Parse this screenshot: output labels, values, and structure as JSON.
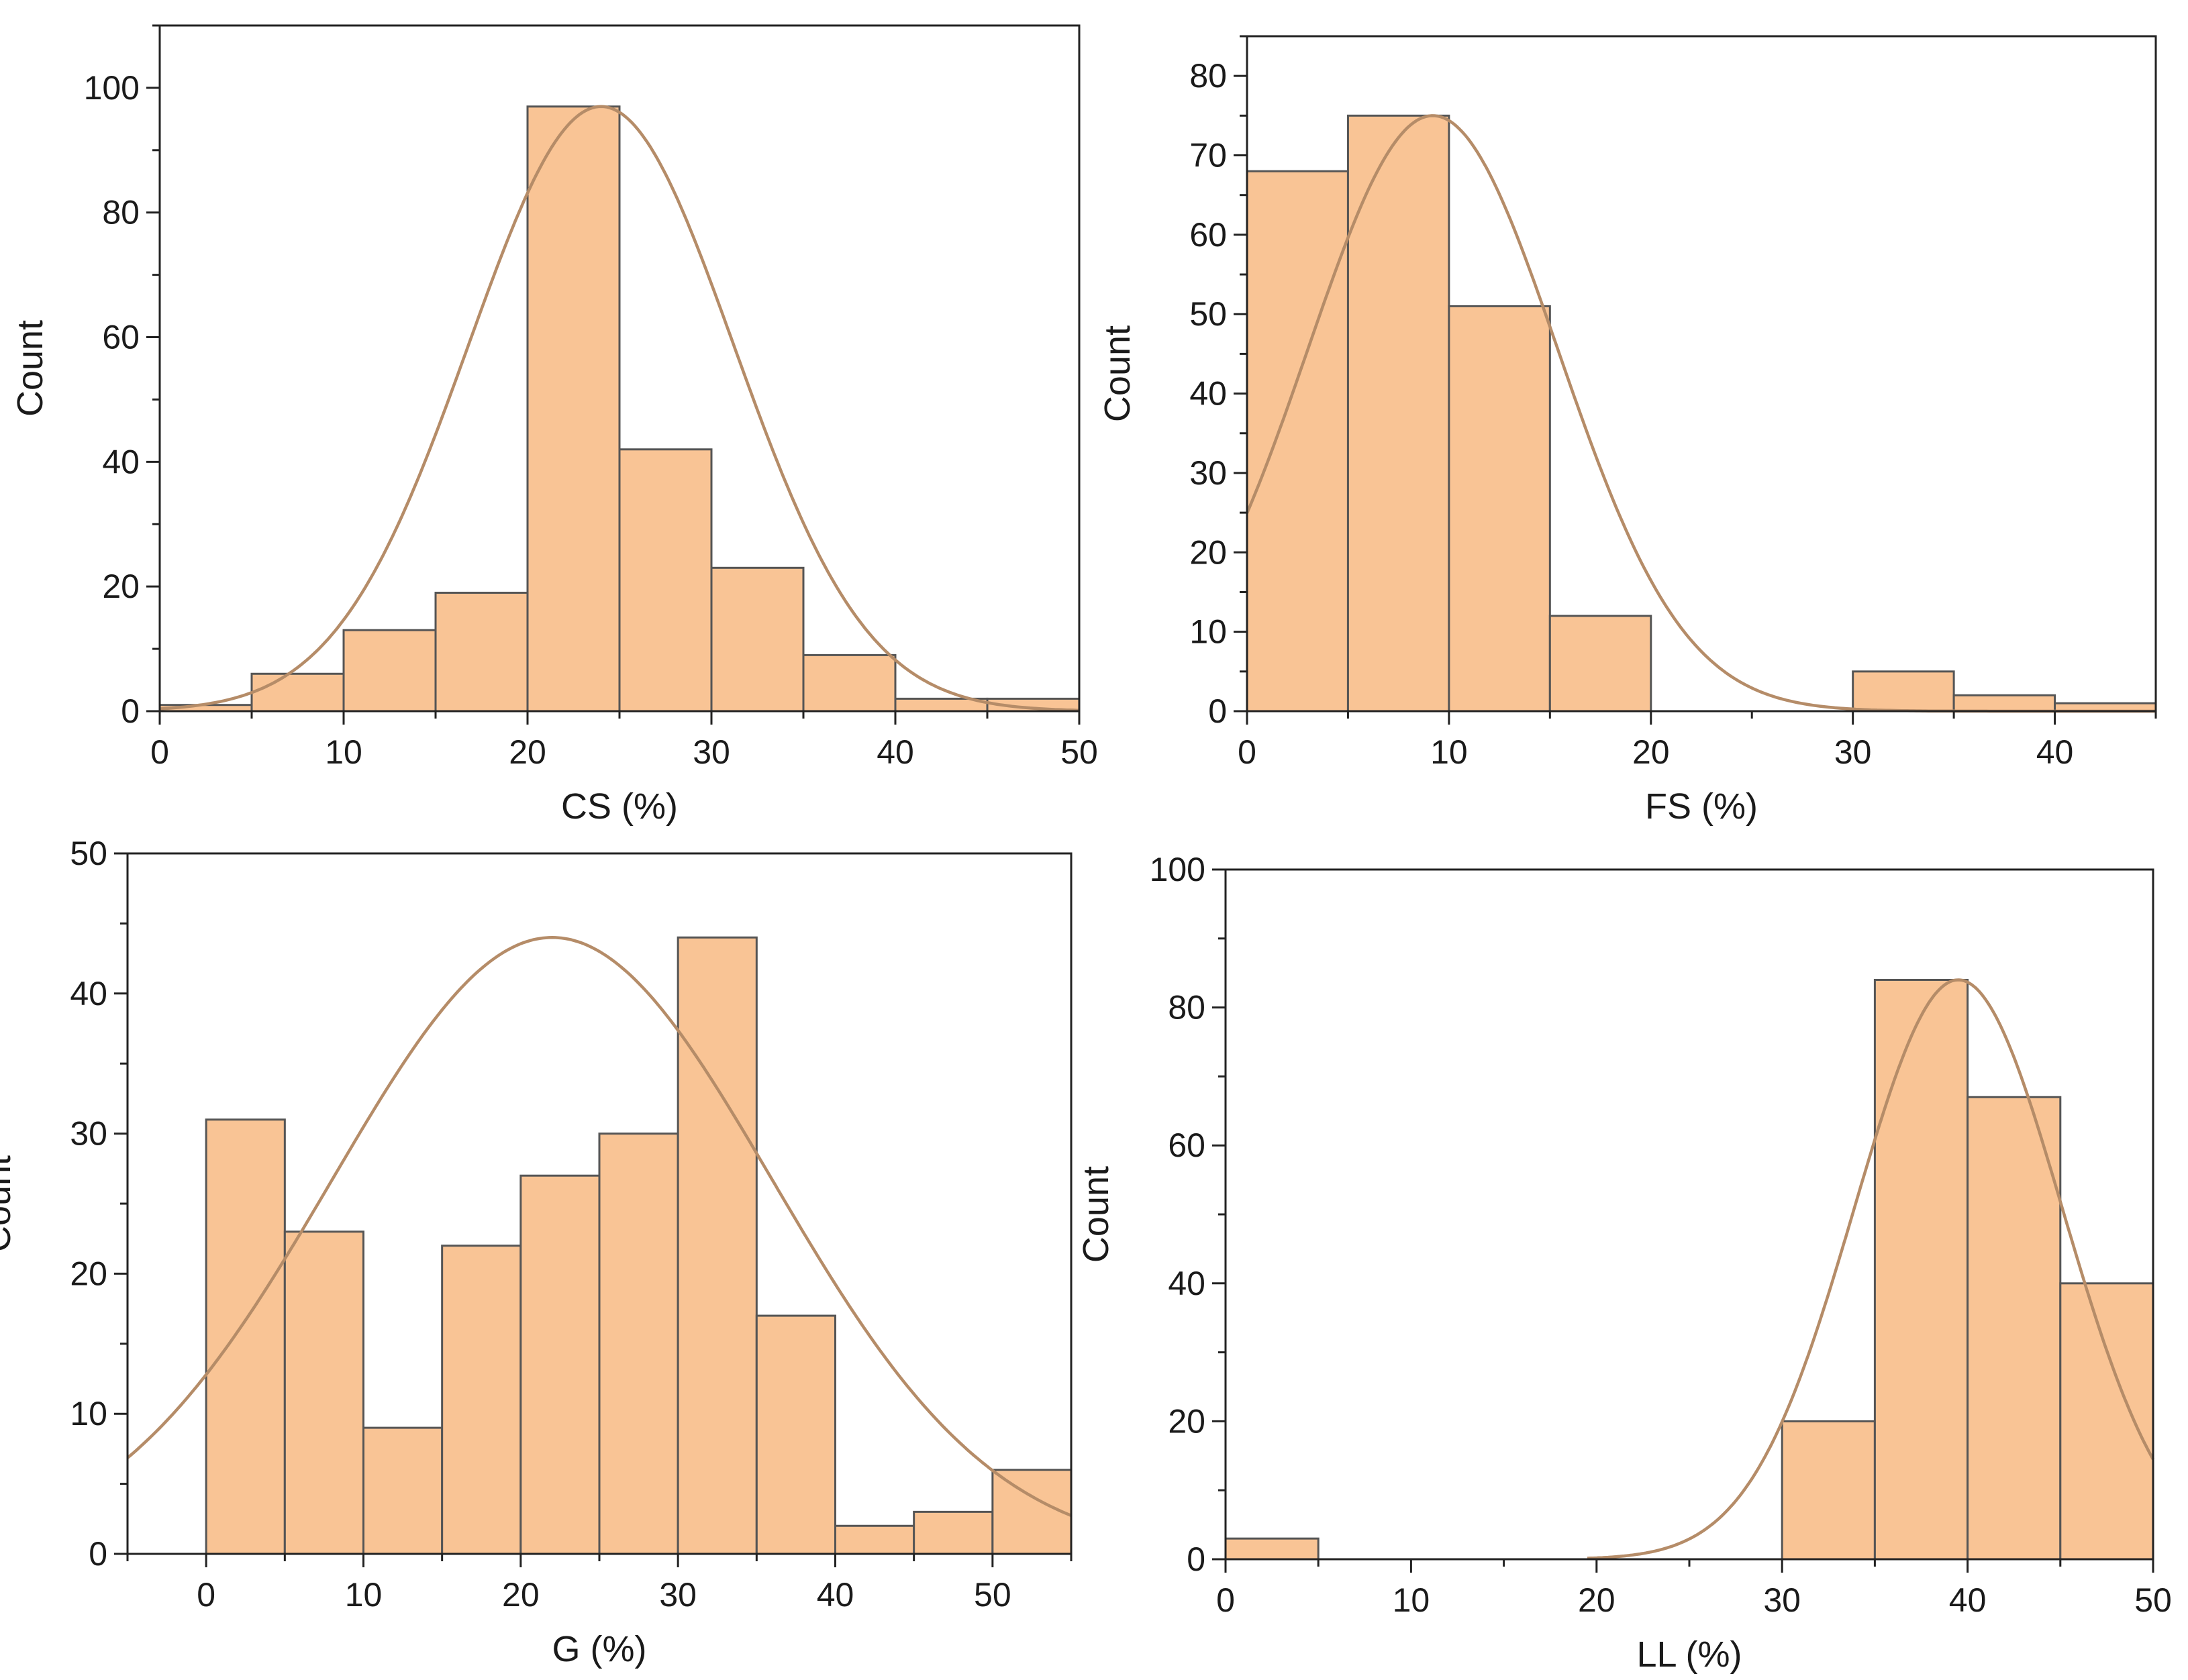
{
  "colors": {
    "bar_fill": "#f9c495",
    "bar_stroke": "#555555",
    "curve": "#b58c68",
    "axis": "#222222",
    "background": "#ffffff"
  },
  "chart_data": [
    {
      "id": "cs",
      "type": "bar",
      "subtype": "histogram-with-normal-fit",
      "title": "",
      "xlabel": "CS (%)",
      "ylabel": "Count",
      "xlim": [
        0,
        50
      ],
      "ylim": [
        0,
        110
      ],
      "xticks": [
        0,
        10,
        20,
        30,
        40,
        50
      ],
      "yticks": [
        0,
        20,
        40,
        60,
        80,
        100
      ],
      "bin_edges": [
        0,
        5,
        10,
        15,
        20,
        25,
        30,
        35,
        40,
        45,
        50
      ],
      "values": [
        1,
        6,
        13,
        19,
        97,
        42,
        23,
        9,
        2,
        2
      ],
      "fit": {
        "type": "normal",
        "mean": 24,
        "sd": 7.2,
        "peak": 97
      },
      "grid": false,
      "frame": "box"
    },
    {
      "id": "fs",
      "type": "bar",
      "subtype": "histogram-with-normal-fit",
      "title": "",
      "xlabel": "FS (%)",
      "ylabel": "Count",
      "xlim": [
        0,
        45
      ],
      "ylim": [
        0,
        85
      ],
      "xticks": [
        0,
        10,
        20,
        30,
        40
      ],
      "yticks": [
        0,
        10,
        20,
        30,
        40,
        50,
        60,
        70,
        80
      ],
      "bin_edges": [
        0,
        5,
        10,
        15,
        20,
        25,
        30,
        35,
        40,
        45
      ],
      "values": [
        68,
        75,
        51,
        12,
        0,
        0,
        5,
        2,
        1
      ],
      "fit": {
        "type": "normal",
        "mean": 9.2,
        "sd": 6.2,
        "peak": 75
      },
      "grid": false,
      "frame": "box"
    },
    {
      "id": "g",
      "type": "bar",
      "subtype": "histogram-with-normal-fit",
      "title": "",
      "xlabel": "G (%)",
      "ylabel": "Count",
      "xlim": [
        -5,
        55
      ],
      "ylim": [
        0,
        50
      ],
      "xticks": [
        0,
        10,
        20,
        30,
        40,
        50
      ],
      "yticks": [
        0,
        10,
        20,
        30,
        40,
        50
      ],
      "bin_edges": [
        0,
        5,
        10,
        15,
        20,
        25,
        30,
        35,
        40,
        45,
        50,
        55
      ],
      "values": [
        31,
        23,
        9,
        22,
        27,
        30,
        44,
        17,
        2,
        3,
        6
      ],
      "fit": {
        "type": "normal",
        "mean": 22,
        "sd": 14,
        "peak": 44
      },
      "grid": false,
      "frame": "box"
    },
    {
      "id": "ll",
      "type": "bar",
      "subtype": "histogram-with-normal-fit",
      "title": "",
      "xlabel": "LL (%)",
      "ylabel": "Count",
      "xlim": [
        0,
        50
      ],
      "ylim": [
        0,
        100
      ],
      "xticks": [
        0,
        10,
        20,
        30,
        40,
        50
      ],
      "yticks": [
        0,
        20,
        40,
        60,
        80,
        100
      ],
      "bin_edges": [
        0,
        5,
        10,
        15,
        20,
        25,
        30,
        35,
        40,
        45,
        50
      ],
      "values": [
        3,
        0,
        0,
        0,
        0,
        0,
        20,
        84,
        67,
        40
      ],
      "fit": {
        "type": "normal",
        "mean": 39.5,
        "sd": 5.6,
        "peak": 84,
        "x_start": 19.5
      },
      "grid": false,
      "frame": "box"
    }
  ]
}
